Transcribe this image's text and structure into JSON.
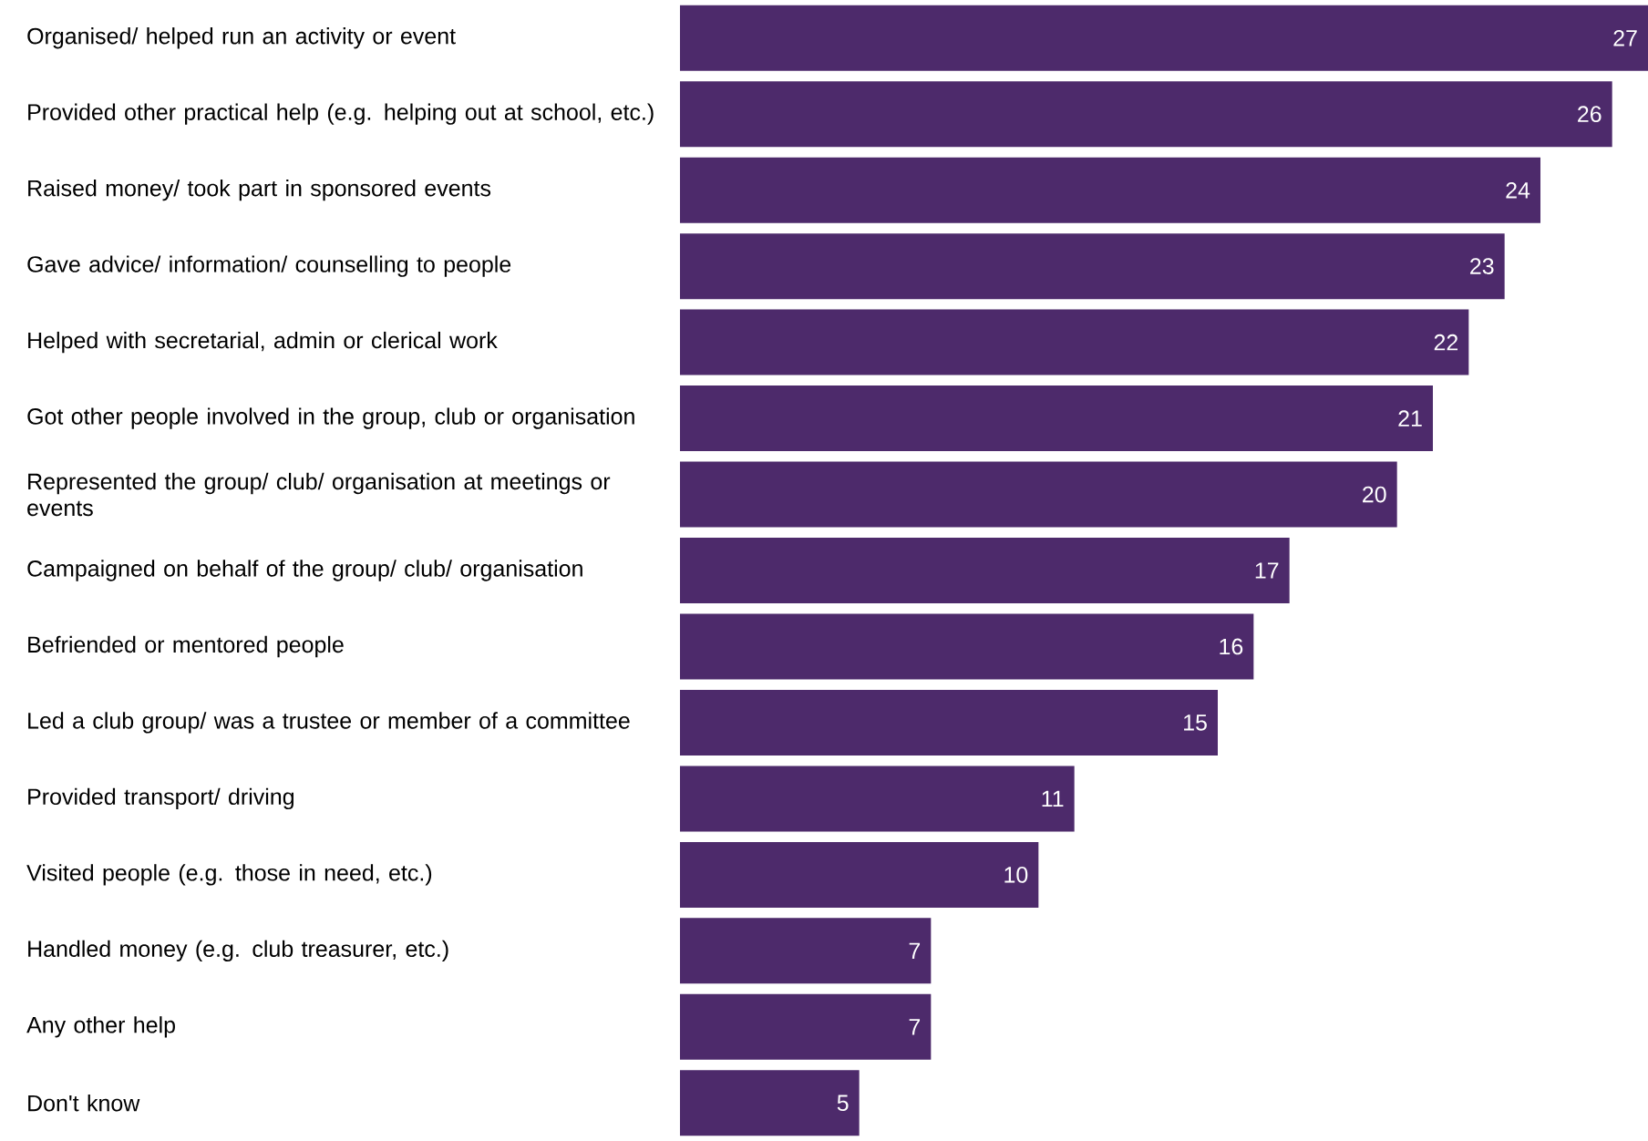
{
  "chart_data": {
    "type": "bar",
    "orientation": "horizontal",
    "categories": [
      "Organised/ helped run an activity or event",
      "Provided other practical help (e.g. helping out at school, etc.)",
      "Raised money/ took part in sponsored events",
      "Gave advice/ information/ counselling to people",
      "Helped with secretarial, admin or clerical work",
      "Got other people involved in the group, club or organisation",
      "Represented the group/ club/ organisation at meetings or events",
      "Campaigned on behalf of the group/ club/ organisation",
      "Befriended or mentored people",
      "Led a club group/ was a trustee or member of a committee",
      "Provided transport/ driving",
      "Visited people (e.g. those in need, etc.)",
      "Handled money (e.g. club treasurer, etc.)",
      "Any other help",
      "Don't know"
    ],
    "values": [
      27,
      26,
      24,
      23,
      22,
      21,
      20,
      17,
      16,
      15,
      11,
      10,
      7,
      7,
      5
    ],
    "color": "#4d2a6b",
    "data_labels": true
  }
}
